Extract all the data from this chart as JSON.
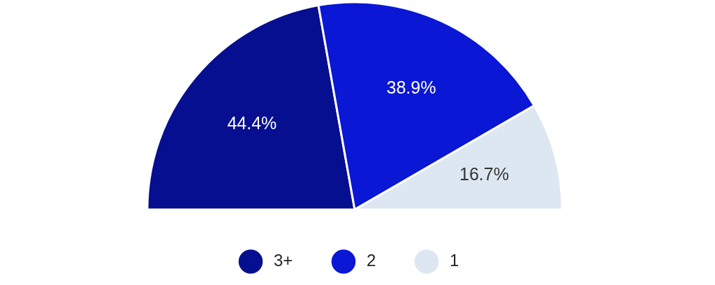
{
  "chart_data": {
    "type": "pie",
    "categories": [
      "3+",
      "2",
      "1"
    ],
    "values": [
      44.4,
      38.9,
      16.7
    ],
    "colors": [
      "#060f8f",
      "#0a17d4",
      "#dde7f2"
    ],
    "value_labels": [
      "44.4%",
      "38.9%",
      "16.7%"
    ],
    "legend": "bottom"
  }
}
